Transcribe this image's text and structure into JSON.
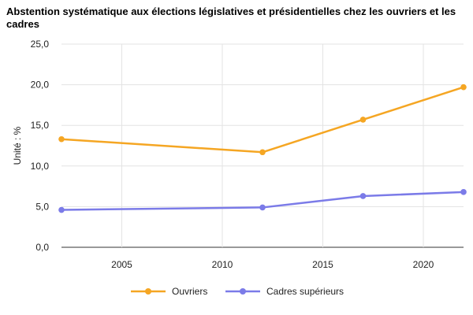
{
  "chart_data": {
    "type": "line",
    "title": "Abstention systématique aux élections législatives et présidentielles chez les ouvriers et les cadres",
    "xlabel": "",
    "ylabel": "Unité : %",
    "xlim": [
      2002,
      2022
    ],
    "ylim": [
      0,
      25
    ],
    "x_ticks": [
      2005,
      2010,
      2015,
      2020
    ],
    "y_ticks": [
      "0,0",
      "5,0",
      "10,0",
      "15,0",
      "20,0",
      "25,0"
    ],
    "y_tick_values": [
      0,
      5,
      10,
      15,
      20,
      25
    ],
    "grid": "horizontal",
    "legend_position": "bottom",
    "series": [
      {
        "name": "Ouvriers",
        "color": "#f5a623",
        "x": [
          2002,
          2012,
          2017,
          2022
        ],
        "y": [
          13.3,
          11.7,
          15.7,
          19.7
        ]
      },
      {
        "name": "Cadres supérieurs",
        "color": "#7b7be8",
        "x": [
          2002,
          2012,
          2017,
          2022
        ],
        "y": [
          4.6,
          4.9,
          6.3,
          6.8
        ]
      }
    ]
  }
}
